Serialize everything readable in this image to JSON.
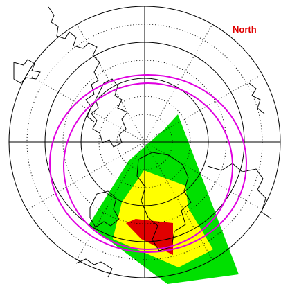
{
  "map": {
    "label": "North"
  }
}
